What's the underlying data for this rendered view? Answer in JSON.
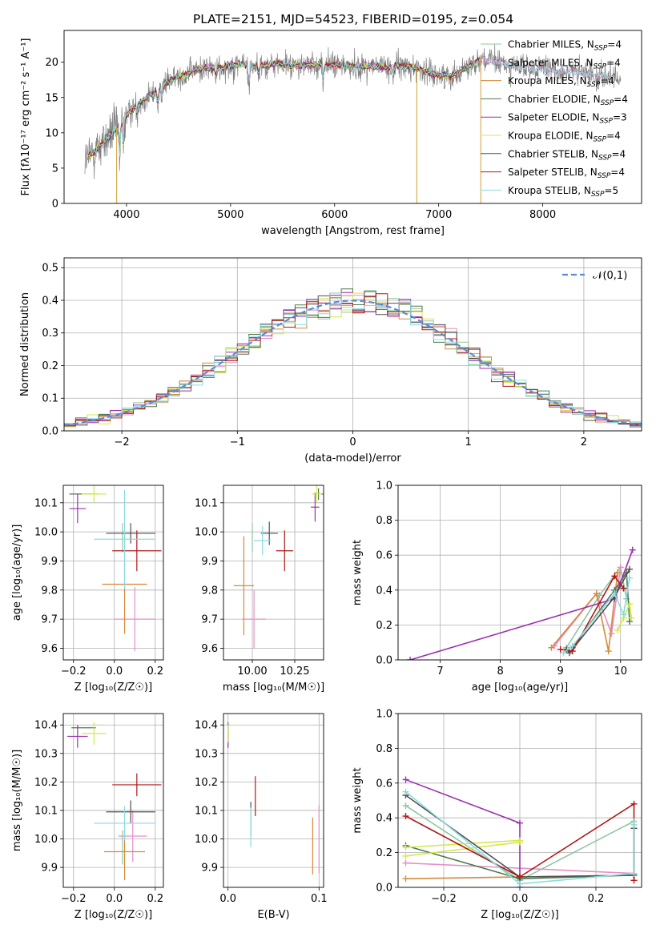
{
  "title": "PLATE=2151, MJD=54523, FIBERID=0195, z=0.054",
  "legend": [
    {
      "name": "Chabrier MILES, N",
      "sub": "SSP",
      "suffix": "=4",
      "color": "#8fc7a0"
    },
    {
      "name": "Salpeter MILES, N",
      "sub": "SSP",
      "suffix": "=4",
      "color": "#e58fc6"
    },
    {
      "name": "Kroupa MILES, N",
      "sub": "SSP",
      "suffix": "=4",
      "color": "#d68a3a"
    },
    {
      "name": "Chabrier ELODIE, N",
      "sub": "SSP",
      "suffix": "=4",
      "color": "#4c7a4c"
    },
    {
      "name": "Salpeter ELODIE, N",
      "sub": "SSP",
      "suffix": "=3",
      "color": "#9c2fb0"
    },
    {
      "name": "Kroupa ELODIE, N",
      "sub": "SSP",
      "suffix": "=4",
      "color": "#d4e84a"
    },
    {
      "name": "Chabrier STELIB, N",
      "sub": "SSP",
      "suffix": "=4",
      "color": "#505050"
    },
    {
      "name": "Salpeter STELIB, N",
      "sub": "SSP",
      "suffix": "=4",
      "color": "#b01818"
    },
    {
      "name": "Kroupa STELIB, N",
      "sub": "SSP",
      "suffix": "=5",
      "color": "#8adbe0"
    }
  ],
  "chart_data": [
    {
      "id": "spectrum",
      "type": "line",
      "xlabel": "wavelength [Angstrom, rest frame]",
      "ylabel": "Flux [fλ10⁻¹⁷ erg cm⁻² s⁻¹ A⁻¹]",
      "xlim": [
        3400,
        8950
      ],
      "ylim": [
        0,
        24.5
      ],
      "xticks": [
        4000,
        5000,
        6000,
        7000,
        8000
      ],
      "yticks": [
        0,
        5,
        10,
        15,
        20
      ],
      "grid": false,
      "legend_position": "right",
      "data_color": "#808080",
      "continuum": [
        [
          3600,
          6.0
        ],
        [
          3700,
          7.5
        ],
        [
          3800,
          9.0
        ],
        [
          3900,
          10.5
        ],
        [
          4000,
          12.5
        ],
        [
          4100,
          14.0
        ],
        [
          4200,
          15.0
        ],
        [
          4300,
          16.0
        ],
        [
          4400,
          17.2
        ],
        [
          4500,
          18.0
        ],
        [
          4600,
          18.5
        ],
        [
          4700,
          19.0
        ],
        [
          4800,
          19.2
        ],
        [
          4900,
          19.2
        ],
        [
          5000,
          19.5
        ],
        [
          5100,
          19.8
        ],
        [
          5200,
          19.5
        ],
        [
          5300,
          19.5
        ],
        [
          5400,
          19.7
        ],
        [
          5500,
          19.7
        ],
        [
          5600,
          19.5
        ],
        [
          5700,
          19.5
        ],
        [
          5800,
          19.6
        ],
        [
          5900,
          19.7
        ],
        [
          6000,
          19.6
        ],
        [
          6100,
          19.5
        ],
        [
          6200,
          19.3
        ],
        [
          6300,
          19.5
        ],
        [
          6400,
          19.4
        ],
        [
          6500,
          19.3
        ],
        [
          6600,
          19.5
        ],
        [
          6700,
          19.4
        ],
        [
          6800,
          19.2
        ],
        [
          6900,
          18.5
        ],
        [
          7000,
          18.2
        ],
        [
          7100,
          18.0
        ],
        [
          7200,
          18.8
        ],
        [
          7300,
          19.5
        ],
        [
          7400,
          20.5
        ],
        [
          7500,
          20.2
        ],
        [
          7600,
          19.8
        ],
        [
          7700,
          19.5
        ],
        [
          7800,
          19.2
        ],
        [
          7900,
          19.0
        ],
        [
          8000,
          19.0
        ],
        [
          8100,
          18.8
        ],
        [
          8200,
          18.7
        ],
        [
          8300,
          18.6
        ],
        [
          8400,
          18.3
        ],
        [
          8500,
          18.3
        ],
        [
          8600,
          18.0
        ],
        [
          8700,
          17.5
        ],
        [
          8750,
          17.5
        ]
      ],
      "model_end": [
        7400,
        8650,
        7400,
        7400,
        7400,
        7400,
        7400,
        7400,
        8650
      ]
    },
    {
      "id": "residuals",
      "type": "histogram",
      "xlabel": "(data-model)/error",
      "ylabel": "Normed distribution",
      "xlim": [
        -2.5,
        2.5
      ],
      "ylim": [
        0,
        0.53
      ],
      "xticks": [
        -2,
        -1,
        0,
        1,
        2
      ],
      "yticks": [
        0.0,
        0.1,
        0.2,
        0.3,
        0.4,
        0.5
      ],
      "grid": true,
      "bin_width": 0.1,
      "reference": {
        "label": "𝒩(0,1)",
        "color": "#5b8bd6",
        "mean": 0,
        "sigma": 1
      },
      "legend_position": "top-right"
    },
    {
      "id": "age-vs-Z",
      "type": "errorbar",
      "xlabel": "Z [log₁₀(Z/Z☉)]",
      "ylabel": "age  [log₁₀(age/yr)]",
      "xlim": [
        -0.25,
        0.24
      ],
      "ylim": [
        9.56,
        10.16
      ],
      "xticks": [
        -0.2,
        0.0,
        0.2
      ],
      "yticks": [
        9.6,
        9.7,
        9.8,
        9.9,
        10.0,
        10.1
      ],
      "grid": true,
      "points": [
        {
          "x": 0.04,
          "y": 9.98,
          "xerr": 0.0,
          "yerr": 0.05
        },
        {
          "x": 0.1,
          "y": 9.7,
          "xerr": 0.1,
          "yerr": 0.11
        },
        {
          "x": 0.05,
          "y": 9.82,
          "xerr": 0.11,
          "yerr": 0.17
        },
        {
          "x": -0.15,
          "y": 10.13,
          "xerr": 0.07,
          "yerr": 0.0
        },
        {
          "x": -0.18,
          "y": 10.08,
          "xerr": 0.04,
          "yerr": 0.05
        },
        {
          "x": -0.1,
          "y": 10.13,
          "xerr": 0.06,
          "yerr": 0.03
        },
        {
          "x": 0.08,
          "y": 9.995,
          "xerr": 0.12,
          "yerr": 0.035
        },
        {
          "x": 0.11,
          "y": 9.935,
          "xerr": 0.12,
          "yerr": 0.07
        },
        {
          "x": 0.05,
          "y": 9.975,
          "xerr": 0.15,
          "yerr": 0.17
        }
      ]
    },
    {
      "id": "age-vs-mass",
      "type": "errorbar",
      "xlabel": "mass [log₁₀(M/M☉)]",
      "ylabel": "",
      "xlim": [
        9.83,
        10.42
      ],
      "ylim": [
        9.56,
        10.16
      ],
      "xticks": [
        10.0,
        10.25
      ],
      "yticks": [
        9.6,
        9.7,
        9.8,
        9.9,
        10.0,
        10.1
      ],
      "grid": true,
      "points": [
        {
          "x": 10.0,
          "y": 9.98,
          "xerr": 0.0,
          "yerr": 0.05
        },
        {
          "x": 10.01,
          "y": 9.7,
          "xerr": 0.07,
          "yerr": 0.1
        },
        {
          "x": 9.95,
          "y": 9.815,
          "xerr": 0.06,
          "yerr": 0.17
        },
        {
          "x": 10.39,
          "y": 10.13,
          "xerr": 0.03,
          "yerr": 0.02
        },
        {
          "x": 10.37,
          "y": 10.085,
          "xerr": 0.025,
          "yerr": 0.05
        },
        {
          "x": 10.38,
          "y": 10.13,
          "xerr": 0.03,
          "yerr": 0.03
        },
        {
          "x": 10.1,
          "y": 9.995,
          "xerr": 0.05,
          "yerr": 0.04
        },
        {
          "x": 10.19,
          "y": 9.935,
          "xerr": 0.05,
          "yerr": 0.07
        },
        {
          "x": 10.06,
          "y": 9.97,
          "xerr": 0.05,
          "yerr": 0.05
        }
      ]
    },
    {
      "id": "massweight-vs-age",
      "type": "line",
      "xlabel": "age  [log₁₀(age/yr)]",
      "ylabel": "mass weight",
      "xlim": [
        6.3,
        10.35
      ],
      "ylim": [
        0,
        1.0
      ],
      "xticks": [
        7,
        8,
        9,
        10
      ],
      "yticks": [
        0.0,
        0.2,
        0.4,
        0.6,
        0.8,
        1.0
      ],
      "grid": true,
      "series": [
        {
          "x": [
            9.1,
            9.65,
            10.0,
            10.1
          ],
          "y": [
            0.07,
            0.37,
            0.53,
            0.35
          ]
        },
        {
          "x": [
            8.9,
            9.6,
            9.85,
            10.0
          ],
          "y": [
            0.08,
            0.38,
            0.15,
            0.53
          ]
        },
        {
          "x": [
            8.85,
            9.6,
            9.8,
            9.95
          ],
          "y": [
            0.07,
            0.38,
            0.05,
            0.5
          ]
        },
        {
          "x": [
            9.2,
            9.9,
            10.1,
            10.15
          ],
          "y": [
            0.07,
            0.4,
            0.5,
            0.22
          ]
        },
        {
          "x": [
            6.5,
            9.9,
            10.2
          ],
          "y": [
            0.0,
            0.35,
            0.63
          ]
        },
        {
          "x": [
            9.95,
            10.05,
            10.15,
            10.18
          ],
          "y": [
            0.17,
            0.24,
            0.32,
            0.24
          ]
        },
        {
          "x": [
            9.1,
            9.15,
            9.9,
            10.15
          ],
          "y": [
            0.06,
            0.04,
            0.36,
            0.52
          ]
        },
        {
          "x": [
            9.0,
            9.2,
            9.9,
            10.05
          ],
          "y": [
            0.06,
            0.05,
            0.48,
            0.41
          ]
        },
        {
          "x": [
            9.05,
            9.2,
            9.9,
            10.05,
            10.15
          ],
          "y": [
            0.04,
            0.08,
            0.38,
            0.26,
            0.47
          ]
        }
      ]
    },
    {
      "id": "mass-vs-Z",
      "type": "errorbar",
      "xlabel": "Z [log₁₀(Z/Z☉)]",
      "ylabel": "mass [log₁₀(M/M☉)]",
      "xlim": [
        -0.25,
        0.24
      ],
      "ylim": [
        9.83,
        10.44
      ],
      "xticks": [
        -0.2,
        0.0,
        0.2
      ],
      "yticks": [
        9.9,
        10.0,
        10.1,
        10.2,
        10.3,
        10.4
      ],
      "grid": true,
      "points": [
        {
          "x": 0.04,
          "y": 9.97,
          "xerr": 0.0,
          "yerr": 0.06
        },
        {
          "x": 0.09,
          "y": 10.01,
          "xerr": 0.07,
          "yerr": 0.09
        },
        {
          "x": 0.05,
          "y": 9.955,
          "xerr": 0.1,
          "yerr": 0.1
        },
        {
          "x": -0.15,
          "y": 10.39,
          "xerr": 0.06,
          "yerr": 0.0
        },
        {
          "x": -0.18,
          "y": 10.36,
          "xerr": 0.05,
          "yerr": 0.04
        },
        {
          "x": -0.1,
          "y": 10.37,
          "xerr": 0.06,
          "yerr": 0.04
        },
        {
          "x": 0.08,
          "y": 10.095,
          "xerr": 0.12,
          "yerr": 0.04
        },
        {
          "x": 0.11,
          "y": 10.19,
          "xerr": 0.12,
          "yerr": 0.04
        },
        {
          "x": 0.05,
          "y": 10.055,
          "xerr": 0.15,
          "yerr": 0.06
        }
      ]
    },
    {
      "id": "mass-vs-ebv",
      "type": "errorbar",
      "xlabel": "E(B-V)",
      "ylabel": "",
      "xlim": [
        -0.005,
        0.105
      ],
      "ylim": [
        9.83,
        10.44
      ],
      "xticks": [
        0.0,
        0.1
      ],
      "yticks": [
        9.9,
        10.0,
        10.1,
        10.2,
        10.3,
        10.4
      ],
      "grid": true,
      "points": [
        {
          "x": 0.0,
          "y": 10.36,
          "xerr": 0.0,
          "yerr": 0.04
        },
        {
          "x": 0.1,
          "y": 10.0,
          "xerr": 0.0,
          "yerr": 0.12
        },
        {
          "x": 0.093,
          "y": 9.975,
          "xerr": 0.0,
          "yerr": 0.1
        },
        {
          "x": 0.0,
          "y": 10.38,
          "xerr": 0.0,
          "yerr": 0.03
        },
        {
          "x": 0.0,
          "y": 10.35,
          "xerr": 0.0,
          "yerr": 0.03
        },
        {
          "x": 0.0,
          "y": 10.37,
          "xerr": 0.0,
          "yerr": 0.03
        },
        {
          "x": 0.025,
          "y": 10.07,
          "xerr": 0.0,
          "yerr": 0.06
        },
        {
          "x": 0.03,
          "y": 10.15,
          "xerr": 0.0,
          "yerr": 0.07
        },
        {
          "x": 0.025,
          "y": 10.04,
          "xerr": 0.0,
          "yerr": 0.07
        }
      ]
    },
    {
      "id": "massweight-vs-Z",
      "type": "line",
      "xlabel": "Z [log₁₀(Z/Z☉)]",
      "ylabel": "mass weight",
      "xlim": [
        -0.32,
        0.32
      ],
      "ylim": [
        0,
        1.0
      ],
      "xticks": [
        -0.2,
        0.0,
        0.2
      ],
      "yticks": [
        0.0,
        0.2,
        0.4,
        0.6,
        0.8,
        1.0
      ],
      "grid": true,
      "series": [
        {
          "x": [
            -0.3,
            0.0,
            0.3
          ],
          "y": [
            0.47,
            0.04,
            0.38
          ]
        },
        {
          "x": [
            -0.3,
            0.3
          ],
          "y": [
            0.14,
            0.08
          ]
        },
        {
          "x": [
            -0.3,
            0.0,
            0.3,
            0.3
          ],
          "y": [
            0.05,
            0.06,
            0.07,
            0.38
          ]
        },
        {
          "x": [
            -0.3,
            0.0,
            0.3,
            0.3
          ],
          "y": [
            0.24,
            0.05,
            0.07,
            0.34
          ]
        },
        {
          "x": [
            -0.3,
            0.0,
            0.0
          ],
          "y": [
            0.62,
            0.37,
            0.0
          ]
        },
        {
          "x": [
            -0.3,
            0.0,
            0.0,
            -0.3
          ],
          "y": [
            0.23,
            0.27,
            0.26,
            0.18
          ]
        },
        {
          "x": [
            -0.3,
            0.0,
            0.3,
            0.3
          ],
          "y": [
            0.53,
            0.06,
            0.07,
            0.34
          ]
        },
        {
          "x": [
            -0.3,
            0.0,
            0.3,
            0.3
          ],
          "y": [
            0.41,
            0.06,
            0.48,
            0.04
          ]
        },
        {
          "x": [
            -0.3,
            0.0,
            0.3,
            0.3,
            0.3
          ],
          "y": [
            0.55,
            0.02,
            0.08,
            0.36,
            0.38
          ]
        }
      ]
    }
  ]
}
